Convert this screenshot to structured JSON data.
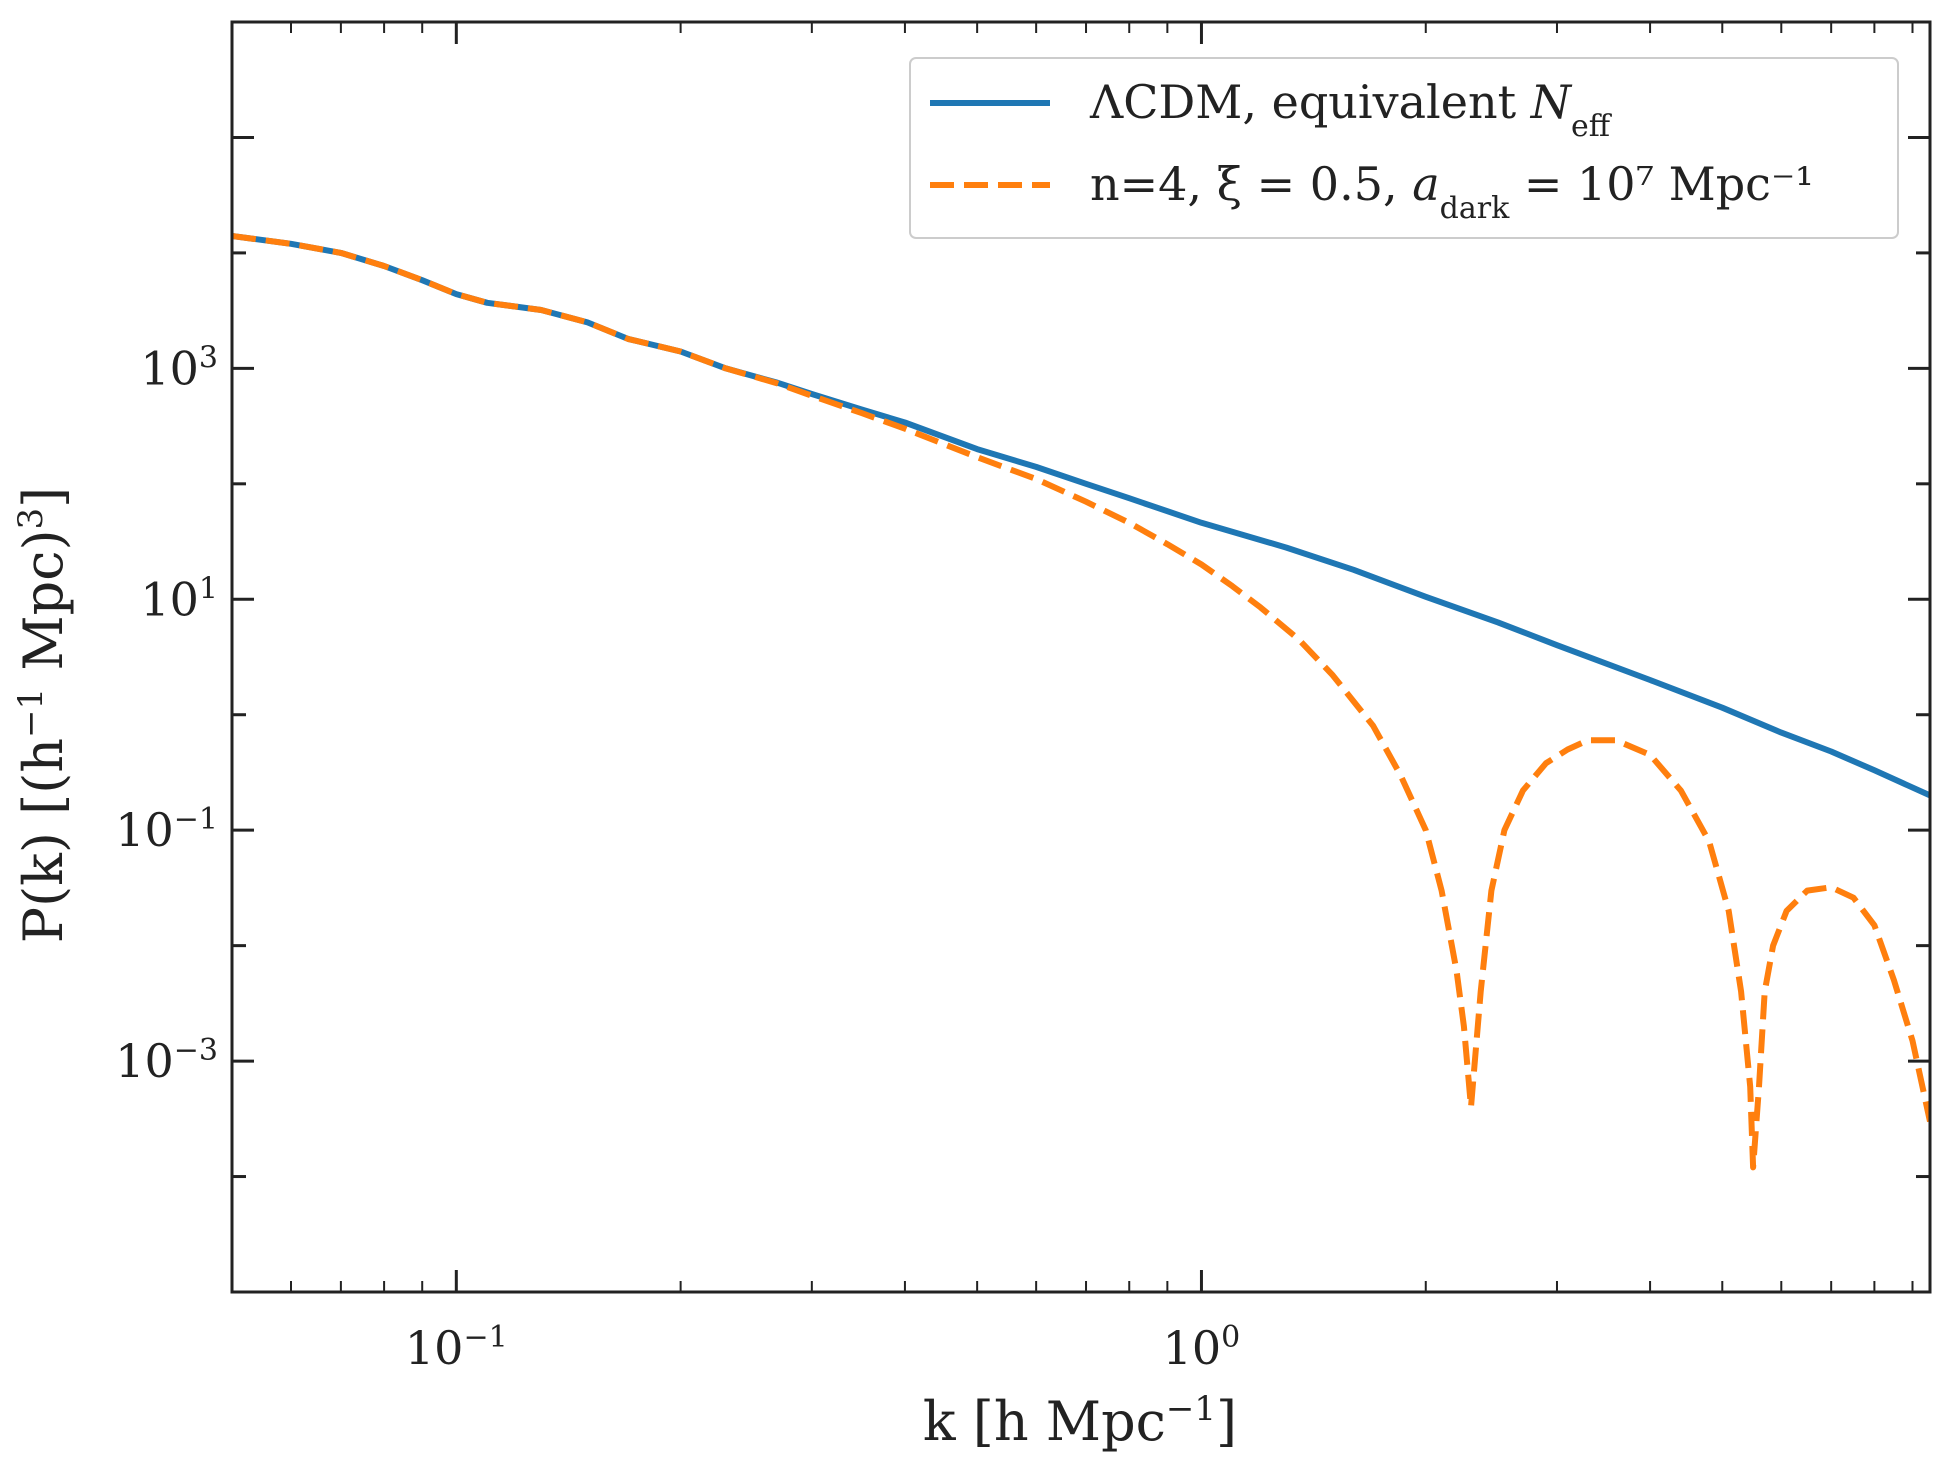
{
  "chart_data": {
    "type": "line",
    "title": "",
    "xlabel": {
      "main": "k [h Mpc",
      "sup": "−1",
      "end": "]"
    },
    "ylabel": {
      "main": "P(k) [(h",
      "sup1": "−1",
      "mid": " Mpc)",
      "sup2": "3",
      "end": "]"
    },
    "xscale": "log",
    "yscale": "log",
    "xlim": [
      0.05,
      9.5
    ],
    "ylim": [
      1e-05,
      1000000
    ],
    "grid": false,
    "legend_position": "top-right",
    "x_ticks": [
      {
        "value": 0.1,
        "base": "10",
        "exp": "−1"
      },
      {
        "value": 1,
        "base": "10",
        "exp": "0"
      }
    ],
    "y_ticks": [
      {
        "value": 0.001,
        "base": "10",
        "exp": "−3"
      },
      {
        "value": 0.1,
        "base": "10",
        "exp": "−1"
      },
      {
        "value": 10,
        "base": "10",
        "exp": "1"
      },
      {
        "value": 1000,
        "base": "10",
        "exp": "3"
      }
    ],
    "series": [
      {
        "name": "ΛCDM, equivalent N_eff",
        "legend_main": "ΛCDM, equivalent ",
        "legend_var": "N",
        "legend_sub": "eff",
        "legend_sup": "",
        "legend_end": "",
        "color": "#1f77b4",
        "style": "solid",
        "x": [
          0.05,
          0.06,
          0.07,
          0.08,
          0.09,
          0.1,
          0.11,
          0.13,
          0.15,
          0.17,
          0.2,
          0.23,
          0.27,
          0.3,
          0.35,
          0.4,
          0.5,
          0.6,
          0.7,
          0.8,
          1.0,
          1.3,
          1.6,
          2.0,
          2.5,
          3.0,
          4.0,
          5.0,
          6.0,
          7.0,
          8.0,
          9.5
        ],
        "y": [
          14000,
          12000,
          10000,
          7700,
          5800,
          4400,
          3700,
          3200,
          2500,
          1800,
          1400,
          1000,
          750,
          600,
          440,
          340,
          200,
          140,
          100,
          75,
          46,
          28,
          18,
          10.5,
          6.3,
          4.0,
          2.0,
          1.15,
          0.7,
          0.48,
          0.33,
          0.2
        ]
      },
      {
        "name": "n=4, ξ = 0.5, a_dark = 10^7 Mpc^-1",
        "legend_main": "n=4, ξ = 0.5, ",
        "legend_var": "a",
        "legend_sub": "dark",
        "legend_sup": "",
        "legend_end": " = 10⁷ Mpc⁻¹",
        "color": "#ff7f0e",
        "style": "dashed",
        "x": [
          0.05,
          0.06,
          0.07,
          0.08,
          0.09,
          0.1,
          0.11,
          0.13,
          0.15,
          0.17,
          0.2,
          0.23,
          0.27,
          0.3,
          0.35,
          0.4,
          0.5,
          0.6,
          0.7,
          0.8,
          0.9,
          1.0,
          1.1,
          1.2,
          1.35,
          1.5,
          1.7,
          1.85,
          2.0,
          2.1,
          2.2,
          2.25,
          2.3,
          2.37,
          2.45,
          2.55,
          2.7,
          2.9,
          3.1,
          3.3,
          3.6,
          4.0,
          4.4,
          4.8,
          5.1,
          5.3,
          5.45,
          5.5,
          5.6,
          5.7,
          5.85,
          6.1,
          6.5,
          7.0,
          7.5,
          8.0,
          8.5,
          9.0,
          9.5
        ],
        "y": [
          14000,
          12000,
          10000,
          7700,
          5800,
          4400,
          3700,
          3200,
          2500,
          1800,
          1400,
          1000,
          740,
          580,
          410,
          300,
          170,
          110,
          70,
          46,
          30,
          20,
          13,
          8.5,
          4.5,
          2.2,
          0.8,
          0.3,
          0.1,
          0.03,
          0.006,
          0.002,
          0.0004,
          0.004,
          0.03,
          0.1,
          0.22,
          0.38,
          0.5,
          0.6,
          0.6,
          0.45,
          0.22,
          0.08,
          0.02,
          0.004,
          0.0006,
          0.00012,
          0.0006,
          0.004,
          0.01,
          0.02,
          0.03,
          0.032,
          0.026,
          0.015,
          0.005,
          0.0015,
          0.0003
        ]
      }
    ]
  }
}
